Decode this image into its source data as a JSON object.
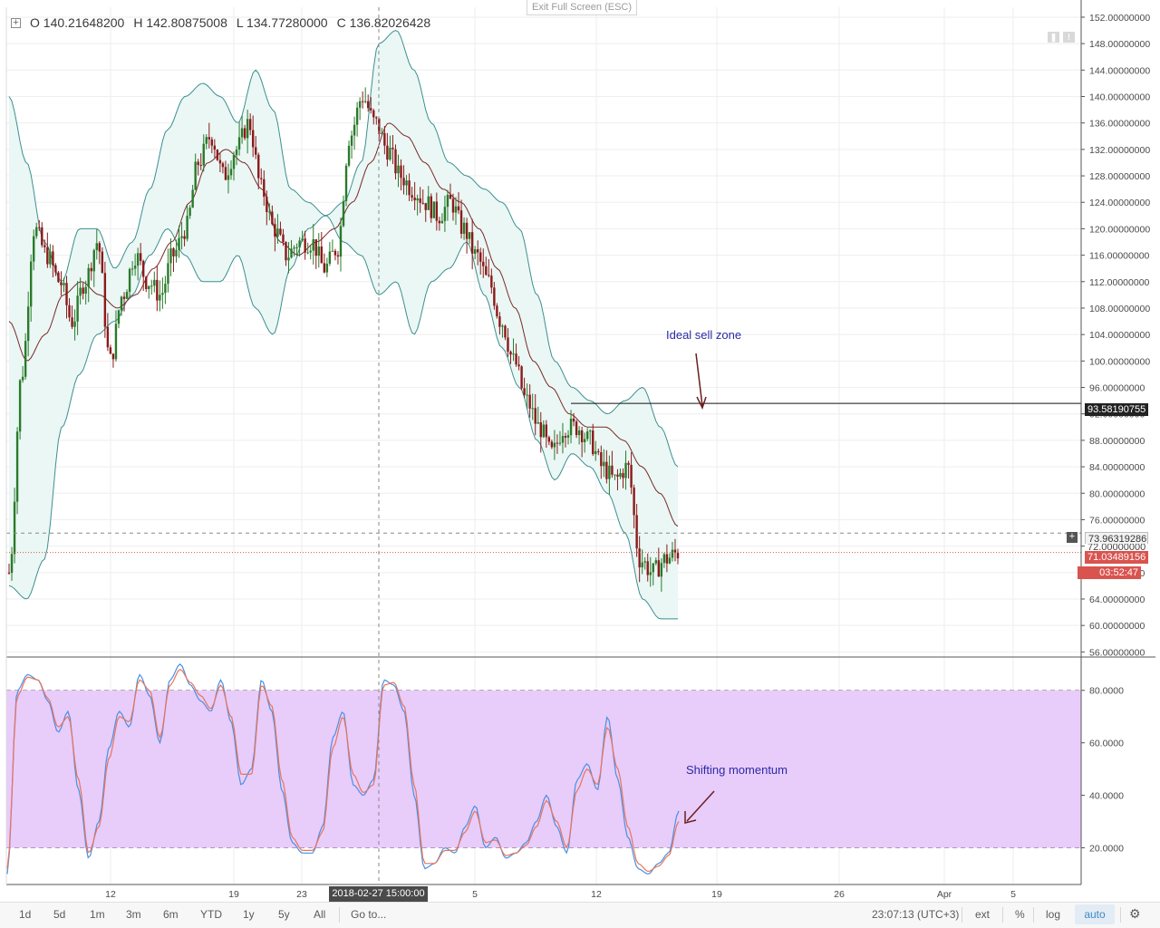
{
  "header": {
    "ohlc_open": "O 140.21648200",
    "ohlc_high": "H 142.80875008",
    "ohlc_low": "L 134.77280000",
    "ohlc_close": "C 136.82026428",
    "exit_fullscreen": "Exit Full Screen (ESC)"
  },
  "annotations": {
    "sell_zone": "Ideal sell zone",
    "momentum": "Shifting momentum"
  },
  "price_badges": {
    "resistance": "93.58190755",
    "crosshair": "73.96319286",
    "hidden": "72.00000000",
    "last": "71.03489156",
    "countdown": "03:52:47"
  },
  "crosshair_time": "2018-02-27 15:00:00",
  "bottom_bar": {
    "ranges": [
      "1d",
      "5d",
      "1m",
      "3m",
      "6m",
      "YTD",
      "1y",
      "5y",
      "All"
    ],
    "goto": "Go to...",
    "clock": "23:07:13 (UTC+3)",
    "ext": "ext",
    "pct": "%",
    "log": "log",
    "auto": "auto"
  },
  "colors": {
    "up": "#2a7a2a",
    "down": "#8b1a1a",
    "band_line": "#3d8f90",
    "band_fill": "#eaf7f5",
    "mid_line": "#7a2a2a",
    "stoch_k": "#4a90e2",
    "stoch_d": "#e8755a",
    "stoch_band": "#e8ccfa"
  },
  "chart_data": [
    {
      "type": "candlestick",
      "timeframe": "3h",
      "x_tick_labels": [
        "12",
        "19",
        "23",
        "5",
        "12",
        "19",
        "26",
        "Apr",
        "5"
      ],
      "y_tick_labels": [
        "152.00000000",
        "148.00000000",
        "144.00000000",
        "140.00000000",
        "136.00000000",
        "132.00000000",
        "128.00000000",
        "124.00000000",
        "120.00000000",
        "116.00000000",
        "112.00000000",
        "108.00000000",
        "104.00000000",
        "100.00000000",
        "96.00000000",
        "92.00000000",
        "88.00000000",
        "84.00000000",
        "80.00000000",
        "76.00000000",
        "72.00000000",
        "68.00000000",
        "64.00000000",
        "60.00000000",
        "56.00000000"
      ],
      "ylim": [
        55.5,
        153.5
      ],
      "close_path": [
        68,
        98,
        120,
        116,
        112,
        106,
        112,
        118,
        100,
        110,
        116,
        112,
        110,
        116,
        120,
        130,
        134,
        128,
        132,
        136,
        126,
        120,
        116,
        118,
        118,
        114,
        117,
        134,
        140,
        136,
        132,
        128,
        126,
        124,
        122,
        124,
        120,
        116,
        112,
        106,
        100,
        94,
        90,
        86,
        90,
        90,
        88,
        84,
        82,
        84,
        70,
        68,
        70,
        71
      ],
      "bollinger_upper_path": [
        140,
        130,
        118,
        112,
        120,
        120,
        114,
        118,
        126,
        135,
        140,
        142,
        140,
        136,
        144,
        138,
        126,
        124,
        122,
        124,
        130,
        148,
        150,
        144,
        136,
        130,
        128,
        126,
        124,
        120,
        110,
        100,
        96,
        94,
        92,
        94,
        96,
        90,
        84
      ],
      "bollinger_lower_path": [
        66,
        64,
        70,
        90,
        98,
        104,
        106,
        110,
        116,
        120,
        116,
        112,
        112,
        116,
        108,
        104,
        114,
        120,
        122,
        118,
        116,
        110,
        112,
        104,
        112,
        114,
        118,
        110,
        102,
        96,
        88,
        82,
        86,
        84,
        80,
        74,
        64,
        61,
        61
      ],
      "moving_average_path": [
        106,
        100,
        104,
        110,
        112,
        110,
        108,
        110,
        114,
        118,
        124,
        130,
        132,
        130,
        126,
        118,
        116,
        118,
        120,
        124,
        130,
        136,
        134,
        130,
        126,
        124,
        120,
        114,
        108,
        100,
        96,
        92,
        90,
        90,
        88,
        84,
        80,
        75
      ]
    },
    {
      "type": "line",
      "title": "",
      "y_tick_labels": [
        "80.0000",
        "60.0000",
        "40.0000",
        "20.0000"
      ],
      "ylim": [
        6,
        92
      ],
      "band": [
        20,
        80
      ],
      "series": [
        {
          "values": [
            10,
            80,
            86,
            84,
            76,
            64,
            72,
            42,
            16,
            30,
            58,
            72,
            66,
            86,
            78,
            60,
            84,
            90,
            82,
            76,
            72,
            84,
            68,
            44,
            50,
            84,
            72,
            42,
            22,
            18,
            18,
            28,
            62,
            72,
            44,
            40,
            46,
            84,
            82,
            72,
            40,
            12,
            14,
            20,
            18,
            28,
            36,
            20,
            24,
            16,
            18,
            22,
            30,
            40,
            28,
            18,
            46,
            52,
            42,
            70,
            46,
            24,
            12,
            10,
            14,
            18,
            34
          ]
        },
        {
          "values": [
            12,
            78,
            85,
            84,
            77,
            66,
            70,
            46,
            18,
            28,
            54,
            70,
            68,
            84,
            80,
            62,
            82,
            88,
            83,
            78,
            73,
            82,
            70,
            48,
            48,
            82,
            74,
            46,
            24,
            19,
            19,
            26,
            58,
            70,
            48,
            41,
            44,
            82,
            83,
            74,
            44,
            14,
            14,
            19,
            19,
            26,
            34,
            22,
            23,
            17,
            18,
            21,
            28,
            38,
            30,
            20,
            42,
            50,
            44,
            66,
            50,
            28,
            14,
            11,
            13,
            17,
            30
          ]
        }
      ]
    }
  ]
}
